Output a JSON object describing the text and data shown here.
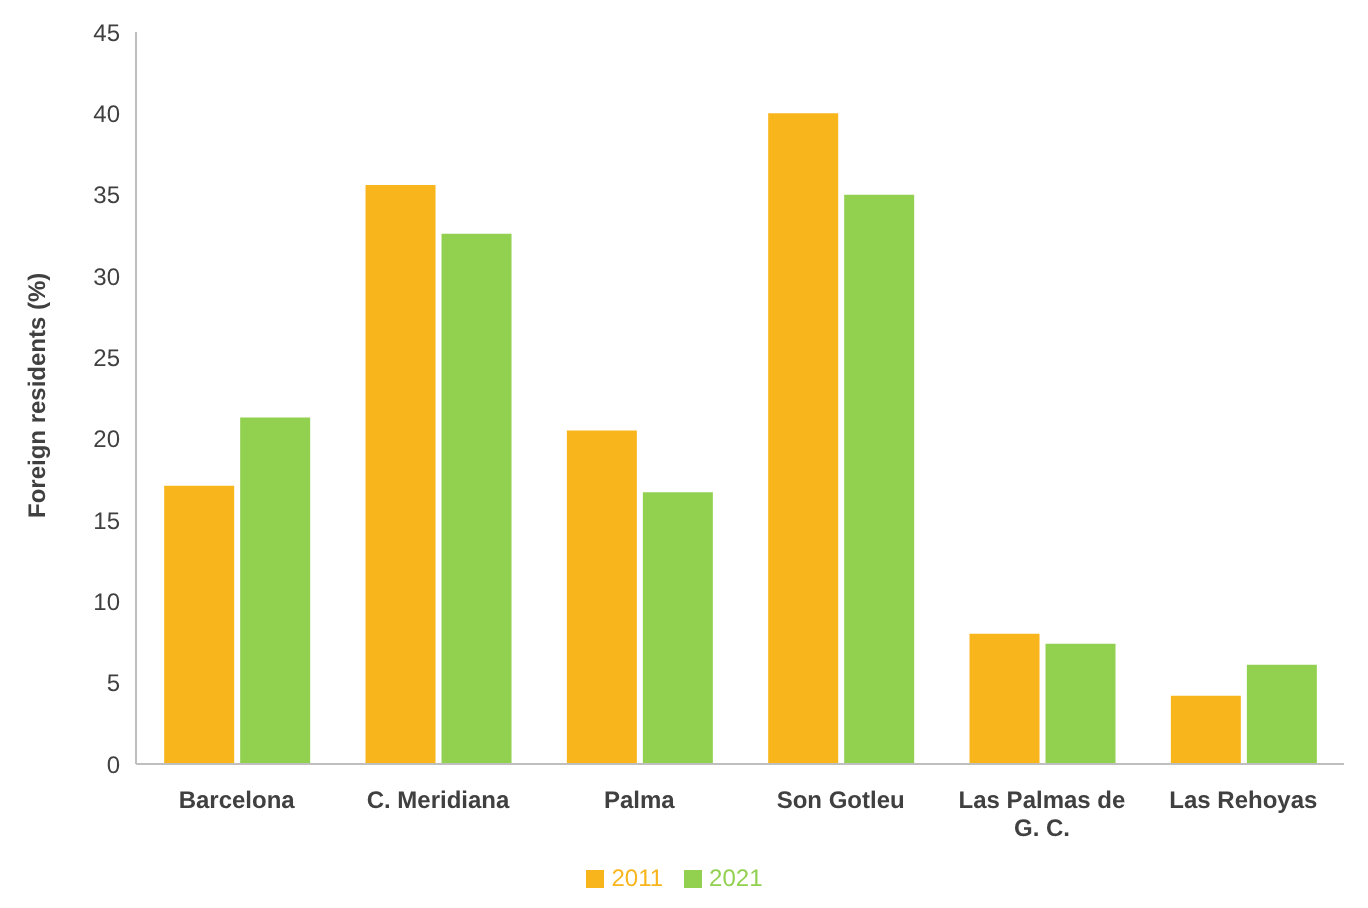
{
  "chart_data": {
    "type": "bar",
    "ylabel": "Foreign residents (%)",
    "categories": [
      "Barcelona",
      "C. Meridiana",
      "Palma",
      "Son Gotleu",
      "Las Palmas de G. C.",
      "Las Rehoyas"
    ],
    "series": [
      {
        "name": "2011",
        "color": "#f9b51c",
        "values": [
          17.1,
          35.6,
          20.5,
          40,
          8,
          4.2
        ]
      },
      {
        "name": "2021",
        "color": "#92d050",
        "values": [
          21.3,
          32.6,
          16.7,
          35,
          7.4,
          6.1
        ]
      }
    ],
    "ylim": [
      0,
      45
    ],
    "yticks": [
      0,
      5,
      10,
      15,
      20,
      25,
      30,
      35,
      40,
      45
    ],
    "grid": false,
    "legend": "bottom"
  }
}
